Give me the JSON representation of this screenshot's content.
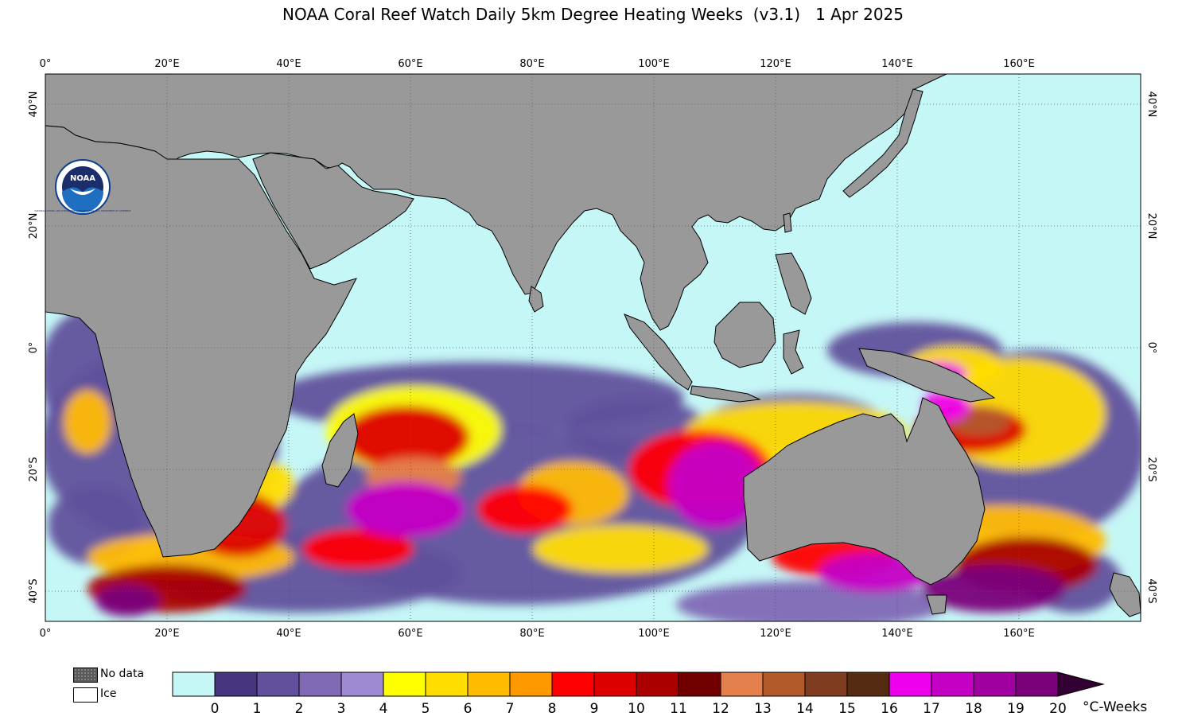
{
  "title": "NOAA Coral Reef Watch Daily 5km Degree Heating Weeks  (v3.1)   1 Apr 2025",
  "colors": {
    "ocean": "#c6f7f7",
    "land": "#999999",
    "coast": "#000000",
    "grid": "#555555"
  },
  "axes": {
    "lon_labels": [
      "0°",
      "20°E",
      "40°E",
      "60°E",
      "80°E",
      "100°E",
      "120°E",
      "140°E",
      "160°E"
    ],
    "lat_labels": [
      "40°N",
      "20°N",
      "0°",
      "20°S",
      "40°S"
    ]
  },
  "legend": {
    "nodata_label": "No data",
    "ice_label": "Ice",
    "units": "°C-Weeks",
    "tick_labels": [
      "0",
      "1",
      "2",
      "3",
      "4",
      "5",
      "6",
      "7",
      "8",
      "9",
      "10",
      "11",
      "12",
      "13",
      "14",
      "15",
      "16",
      "17",
      "18",
      "19",
      "20"
    ],
    "colors": [
      "#c6f7f7",
      "#46357f",
      "#61519c",
      "#8069b5",
      "#9d8ad0",
      "#ffff00",
      "#ffdd00",
      "#ffbb00",
      "#ff9900",
      "#ff0000",
      "#dd0000",
      "#aa0000",
      "#700000",
      "#e4804c",
      "#b35a2b",
      "#7f3c1f",
      "#552b12",
      "#ee00ee",
      "#c500c5",
      "#a000a0",
      "#7a007a"
    ],
    "overflow_color": "#330033"
  },
  "logo": {
    "text": "NOAA",
    "ring_text": "NATIONAL OCEANIC AND ATMOSPHERIC ADMINISTRATION · U.S. DEPARTMENT OF COMMERCE"
  }
}
